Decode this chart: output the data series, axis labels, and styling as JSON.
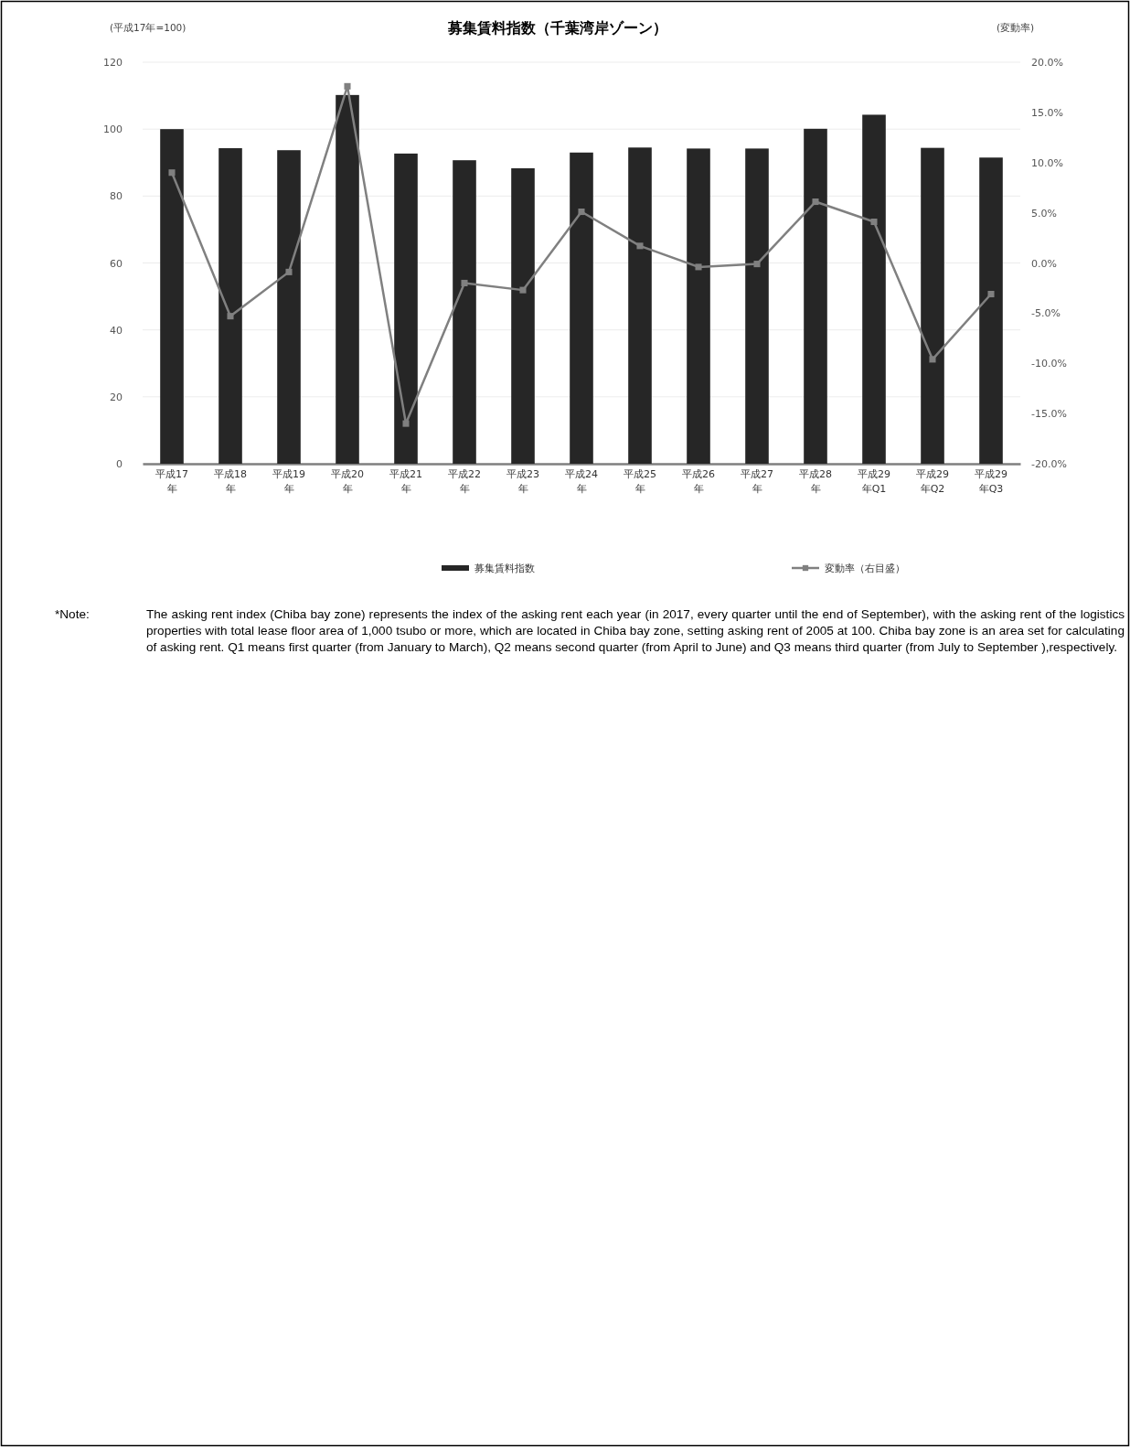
{
  "chart_data": {
    "type": "bar",
    "title": "募集賃料指数（千葉湾岸ゾーン）",
    "ylabel": "(平成17年=100)",
    "y2label": "(変動率)",
    "categories": [
      "平成17年",
      "平成18年",
      "平成19年",
      "平成20年",
      "平成21年",
      "平成22年",
      "平成23年",
      "平成24年",
      "平成25年",
      "平成26年",
      "平成27年",
      "平成28年",
      "平成29年Q1",
      "平成29年Q2",
      "平成29年Q3"
    ],
    "series": [
      {
        "name": "募集賃料指数",
        "color": "#262626",
        "values": [
          100,
          94.3,
          93.7,
          110.2,
          92.7,
          90.7,
          88.3,
          93.0,
          94.5,
          94.2,
          94.2,
          100.1,
          104.3,
          94.4,
          91.5
        ]
      },
      {
        "name": "変動率（右目盛）",
        "type": "line",
        "axis": "y2",
        "color": "#808080",
        "marker": "square",
        "values": [
          9.0,
          -5.3,
          -0.9,
          17.6,
          -16.0,
          -2.0,
          -2.7,
          5.1,
          1.7,
          -0.4,
          -0.1,
          6.1,
          4.1,
          -9.6,
          -3.1
        ]
      }
    ],
    "ylim": [
      0,
      120
    ],
    "yticks": [
      0,
      20,
      40,
      60,
      80,
      100,
      120
    ],
    "y2lim": [
      -20,
      20
    ],
    "y2ticks": [
      {
        "value": -20,
        "label": "-20.0%"
      },
      {
        "value": -15,
        "label": "-15.0%"
      },
      {
        "value": -10,
        "label": "-10.0%"
      },
      {
        "value": -5,
        "label": "-5.0%"
      },
      {
        "value": 0,
        "label": "0.0%"
      },
      {
        "value": 5,
        "label": "5.0%"
      },
      {
        "value": 10,
        "label": "10.0%"
      },
      {
        "value": 15,
        "label": "15.0%"
      },
      {
        "value": 20,
        "label": "20.0%"
      }
    ],
    "grid": "y",
    "legend": "bottom",
    "annotations": [
      "*Note:",
      "The asking rent index (Chiba bay zone) represents the index of the asking rent each year (in 2017, every quarter until the end of September), with the asking rent of the logistics properties with total lease floor area of 1,000 tsubo or more, which are located in Chiba bay zone, setting asking rent of 2005 at 100. Chiba bay zone is an area set for calculating of asking rent. Q1 means first quarter (from January to March), Q2 means second quarter (from April to June) and Q3 means third quarter (from July to September ),respectively."
    ]
  }
}
